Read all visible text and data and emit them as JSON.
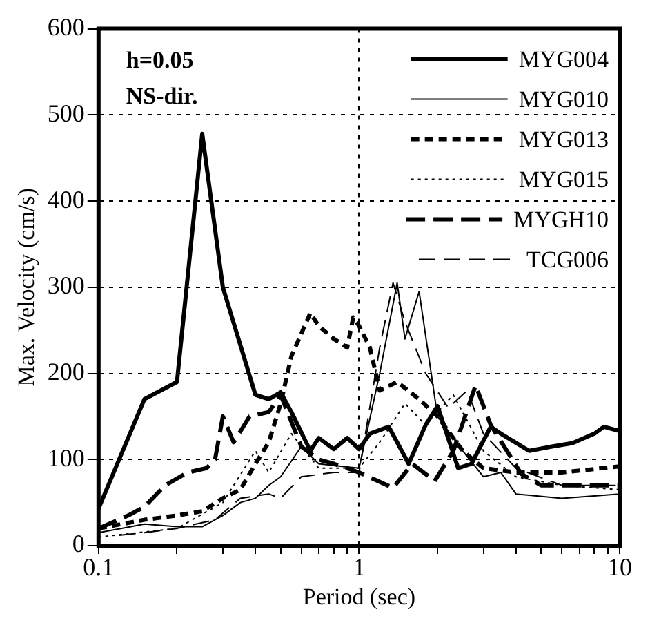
{
  "chart_data": {
    "type": "line",
    "xlabel": "Period (sec)",
    "ylabel": "Max. Velocity (cm/s)",
    "log": "x",
    "xlim": [
      0.1,
      10
    ],
    "ylim": [
      0,
      600
    ],
    "xticks": [
      0.1,
      {
        "value": 0.2,
        "label": null
      },
      {
        "value": 0.3,
        "label": null
      },
      {
        "value": 0.4,
        "label": null
      },
      {
        "value": 0.5,
        "label": null
      },
      {
        "value": 0.6,
        "label": null
      },
      {
        "value": 0.7,
        "label": null
      },
      {
        "value": 0.8,
        "label": null
      },
      {
        "value": 0.9,
        "label": null
      },
      1,
      {
        "value": 2,
        "label": null
      },
      {
        "value": 3,
        "label": null
      },
      {
        "value": 4,
        "label": null
      },
      {
        "value": 5,
        "label": null
      },
      {
        "value": 6,
        "label": null
      },
      {
        "value": 7,
        "label": null
      },
      {
        "value": 8,
        "label": null
      },
      {
        "value": 9,
        "label": null
      },
      10
    ],
    "yticks": [
      0,
      100,
      200,
      300,
      400,
      500,
      600
    ],
    "grid": true,
    "legend": "top right",
    "marker": "none",
    "annotations": [
      "h=0.05",
      "NS-dir."
    ],
    "series": [
      {
        "name": "MYG004",
        "color": "#000000",
        "line_style": "solid",
        "x": [
          0.1,
          0.15,
          0.2,
          0.25,
          0.3,
          0.4,
          0.45,
          0.5,
          0.55,
          0.65,
          0.7,
          0.8,
          0.9,
          1.0,
          1.1,
          1.3,
          1.55,
          1.8,
          2.0,
          2.4,
          2.7,
          3.2,
          3.5,
          4.5,
          5.5,
          6.6,
          8,
          8.7,
          10
        ],
        "values": [
          43,
          170,
          190,
          478,
          300,
          175,
          170,
          178,
          155,
          110,
          125,
          112,
          125,
          112,
          130,
          138,
          95,
          140,
          162,
          90,
          95,
          138,
          130,
          110,
          115,
          119,
          130,
          138,
          133
        ]
      },
      {
        "name": "MYG010",
        "color": "#000000",
        "line_style": "solid",
        "x": [
          0.1,
          0.15,
          0.2,
          0.25,
          0.3,
          0.35,
          0.4,
          0.45,
          0.5,
          0.6,
          0.7,
          1.0,
          1.2,
          1.4,
          1.5,
          1.7,
          2.0,
          2.5,
          3,
          3.5,
          4,
          6,
          10
        ],
        "values": [
          15,
          25,
          22,
          22,
          35,
          50,
          55,
          70,
          80,
          115,
          95,
          90,
          200,
          305,
          240,
          295,
          150,
          110,
          80,
          85,
          60,
          55,
          60
        ]
      },
      {
        "name": "MYG013",
        "color": "#000000",
        "line_style": "dashed",
        "x": [
          0.1,
          0.15,
          0.2,
          0.25,
          0.3,
          0.35,
          0.4,
          0.45,
          0.5,
          0.55,
          0.65,
          0.7,
          0.8,
          0.9,
          0.95,
          1.0,
          1.1,
          1.2,
          1.4,
          1.7,
          2.0,
          2.5,
          3,
          4,
          6,
          10
        ],
        "values": [
          20,
          30,
          35,
          40,
          55,
          65,
          95,
          120,
          165,
          220,
          270,
          255,
          240,
          230,
          265,
          255,
          230,
          180,
          190,
          170,
          150,
          110,
          90,
          85,
          85,
          92
        ]
      },
      {
        "name": "MYG015",
        "color": "#000000",
        "line_style": "dotted",
        "x": [
          0.1,
          0.2,
          0.3,
          0.4,
          0.45,
          0.55,
          0.7,
          1.0,
          1.2,
          1.5,
          1.8,
          2.3,
          3,
          4,
          6,
          10
        ],
        "values": [
          10,
          20,
          50,
          110,
          85,
          130,
          90,
          90,
          120,
          165,
          140,
          175,
          110,
          80,
          70,
          65
        ]
      },
      {
        "name": "MYGH10",
        "color": "#000000",
        "line_style": "dashed",
        "x": [
          0.1,
          0.13,
          0.15,
          0.18,
          0.22,
          0.26,
          0.28,
          0.3,
          0.33,
          0.38,
          0.45,
          0.5,
          0.6,
          0.7,
          0.8,
          1.0,
          1.35,
          1.6,
          1.95,
          2.3,
          2.8,
          3.2,
          4.2,
          5,
          7,
          10
        ],
        "values": [
          20,
          35,
          45,
          70,
          85,
          90,
          100,
          150,
          120,
          150,
          155,
          175,
          115,
          100,
          95,
          85,
          67,
          95,
          75,
          110,
          186,
          140,
          83,
          70,
          70,
          70
        ]
      },
      {
        "name": "TCG006",
        "color": "#000000",
        "line_style": "dashed",
        "x": [
          0.12,
          0.15,
          0.2,
          0.28,
          0.35,
          0.45,
          0.5,
          0.6,
          0.8,
          1.0,
          1.2,
          1.35,
          1.5,
          1.8,
          2.2,
          2.6,
          3,
          4,
          6,
          10
        ],
        "values": [
          12,
          15,
          20,
          30,
          55,
          60,
          55,
          80,
          85,
          85,
          230,
          305,
          260,
          200,
          160,
          180,
          130,
          90,
          70,
          70
        ]
      }
    ]
  }
}
